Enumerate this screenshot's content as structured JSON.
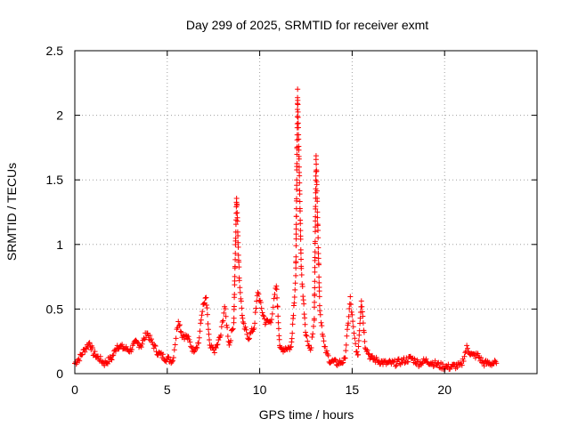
{
  "chart_data": {
    "type": "scatter",
    "title": "Day 299 of 2025, SRMTID for receiver exmt",
    "xlabel": "GPS time / hours",
    "ylabel": "SRMTID / TECUs",
    "xlim": [
      0,
      25
    ],
    "ylim": [
      0,
      2.5
    ],
    "x_ticks": [
      0,
      5,
      10,
      15,
      20
    ],
    "x_tick_labels": [
      "0",
      "5",
      "10",
      "15",
      "20"
    ],
    "y_ticks": [
      0,
      0.5,
      1,
      1.5,
      2,
      2.5
    ],
    "y_tick_labels": [
      "0",
      "0.5",
      "1",
      "1.5",
      "2",
      "2.5"
    ],
    "grid": true,
    "marker": "+",
    "color": "#ff0000",
    "series": [
      {
        "name": "SRMTID",
        "profile": [
          [
            0.0,
            0.08
          ],
          [
            0.25,
            0.12
          ],
          [
            0.5,
            0.18
          ],
          [
            0.8,
            0.24
          ],
          [
            1.0,
            0.16
          ],
          [
            1.3,
            0.12
          ],
          [
            1.6,
            0.08
          ],
          [
            2.0,
            0.12
          ],
          [
            2.3,
            0.22
          ],
          [
            2.6,
            0.2
          ],
          [
            3.0,
            0.18
          ],
          [
            3.3,
            0.24
          ],
          [
            3.6,
            0.22
          ],
          [
            3.9,
            0.32
          ],
          [
            4.1,
            0.26
          ],
          [
            4.5,
            0.16
          ],
          [
            4.9,
            0.12
          ],
          [
            5.3,
            0.1
          ],
          [
            5.6,
            0.42
          ],
          [
            5.8,
            0.3
          ],
          [
            6.1,
            0.28
          ],
          [
            6.4,
            0.18
          ],
          [
            6.7,
            0.24
          ],
          [
            6.9,
            0.5
          ],
          [
            7.1,
            0.58
          ],
          [
            7.3,
            0.2
          ],
          [
            7.6,
            0.18
          ],
          [
            7.9,
            0.3
          ],
          [
            8.1,
            0.52
          ],
          [
            8.35,
            0.22
          ],
          [
            8.6,
            0.4
          ],
          [
            8.75,
            1.38
          ],
          [
            8.9,
            0.72
          ],
          [
            9.1,
            0.38
          ],
          [
            9.4,
            0.28
          ],
          [
            9.7,
            0.36
          ],
          [
            9.9,
            0.64
          ],
          [
            10.1,
            0.5
          ],
          [
            10.3,
            0.4
          ],
          [
            10.6,
            0.4
          ],
          [
            10.9,
            0.68
          ],
          [
            11.1,
            0.18
          ],
          [
            11.4,
            0.2
          ],
          [
            11.7,
            0.2
          ],
          [
            11.95,
            0.75
          ],
          [
            12.05,
            2.18
          ],
          [
            12.25,
            0.8
          ],
          [
            12.5,
            0.3
          ],
          [
            12.75,
            0.18
          ],
          [
            12.95,
            0.4
          ],
          [
            13.05,
            1.68
          ],
          [
            13.25,
            0.5
          ],
          [
            13.5,
            0.2
          ],
          [
            13.8,
            0.1
          ],
          [
            14.2,
            0.08
          ],
          [
            14.6,
            0.1
          ],
          [
            14.9,
            0.58
          ],
          [
            15.1,
            0.3
          ],
          [
            15.3,
            0.12
          ],
          [
            15.5,
            0.58
          ],
          [
            15.7,
            0.22
          ],
          [
            16.0,
            0.12
          ],
          [
            16.4,
            0.1
          ],
          [
            16.8,
            0.08
          ],
          [
            17.3,
            0.08
          ],
          [
            17.8,
            0.1
          ],
          [
            18.2,
            0.12
          ],
          [
            18.6,
            0.08
          ],
          [
            19.0,
            0.1
          ],
          [
            19.4,
            0.08
          ],
          [
            19.8,
            0.06
          ],
          [
            20.2,
            0.05
          ],
          [
            20.6,
            0.06
          ],
          [
            20.9,
            0.06
          ],
          [
            21.2,
            0.2
          ],
          [
            21.5,
            0.14
          ],
          [
            21.8,
            0.14
          ],
          [
            22.1,
            0.08
          ],
          [
            22.5,
            0.08
          ],
          [
            22.8,
            0.08
          ]
        ]
      }
    ]
  }
}
